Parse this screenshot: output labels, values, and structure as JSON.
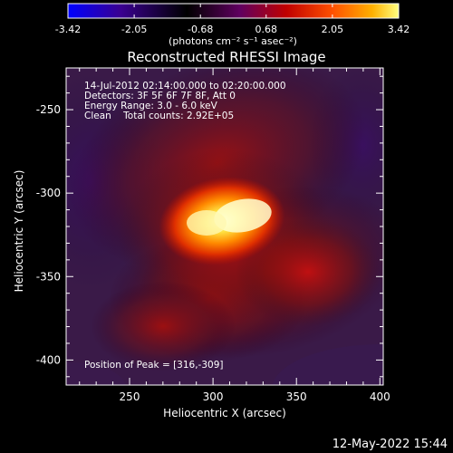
{
  "colorbar": {
    "tick_labels": [
      "-3.42",
      "-2.05",
      "-0.68",
      "0.68",
      "2.05",
      "3.42"
    ],
    "ticks": [
      -3.42,
      -2.05,
      -0.68,
      0.68,
      2.05,
      3.42
    ],
    "range": [
      -3.42,
      3.42
    ],
    "unit_label": "(photons cm⁻² s⁻¹ asec⁻²)",
    "colormap": [
      "#0000ff",
      "#3a0090",
      "#000000",
      "#600060",
      "#c00000",
      "#ff5000",
      "#ffb000",
      "#ffff80"
    ]
  },
  "plot": {
    "title": "Reconstructed RHESSI Image",
    "xlabel": "Heliocentric X (arcsec)",
    "ylabel": "Heliocentric Y (arcsec)",
    "xlim": [
      212,
      402
    ],
    "ylim": [
      -415,
      -225
    ],
    "x_ticks": [
      250,
      300,
      350,
      400
    ],
    "x_tick_labels": [
      "250",
      "300",
      "350",
      "400"
    ],
    "y_ticks": [
      -250,
      -300,
      -350,
      -400
    ],
    "y_tick_labels": [
      "-250",
      "-300",
      "-350",
      "-400"
    ]
  },
  "info": {
    "time_range": "14-Jul-2012 02:14:00.000 to 02:20:00.000",
    "detectors": "Detectors: 3F 5F 6F 7F 8F, Att 0",
    "energy": "Energy Range: 3.0 - 6.0 keV",
    "method_counts": "Clean    Total counts: 2.92E+05",
    "peak": "Position of Peak = [316,-309]"
  },
  "image": {
    "peak_x": 316,
    "peak_y": -309,
    "unit": "arcsec"
  },
  "footer": {
    "timestamp": "12-May-2022 15:44"
  }
}
